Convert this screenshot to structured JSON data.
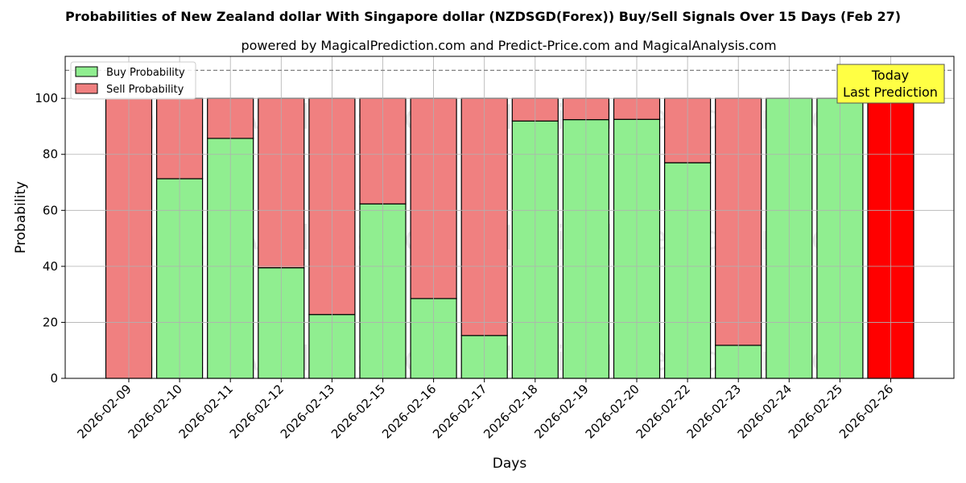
{
  "chart_data": {
    "type": "bar",
    "stacked": true,
    "title": "Probabilities of New Zealand dollar With Singapore dollar (NZDSGD(Forex)) Buy/Sell Signals Over 15 Days (Feb 27)",
    "subtitle": "powered by MagicalPrediction.com and Predict-Price.com and MagicalAnalysis.com",
    "xlabel": "Days",
    "ylabel": "Probability",
    "ylim": [
      0,
      115
    ],
    "yticks": [
      0,
      20,
      40,
      60,
      80,
      100
    ],
    "reference_line": 110,
    "grid": true,
    "legend_position": "top-left",
    "categories": [
      "2026-02-09",
      "2026-02-10",
      "2026-02-11",
      "2026-02-12",
      "2026-02-13",
      "2026-02-15",
      "2026-02-16",
      "2026-02-17",
      "2026-02-18",
      "2026-02-19",
      "2026-02-20",
      "2026-02-22",
      "2026-02-23",
      "2026-02-24",
      "2026-02-25",
      "2026-02-26"
    ],
    "series": [
      {
        "name": "Buy Probability",
        "color": "#90ee90",
        "values": [
          0,
          71.3,
          85.7,
          39.5,
          22.8,
          62.3,
          28.5,
          15.3,
          91.9,
          92.4,
          92.5,
          77.0,
          11.8,
          100,
          100,
          0
        ]
      },
      {
        "name": "Sell Probability",
        "color": "#f08080",
        "values": [
          100,
          28.7,
          14.3,
          60.5,
          77.2,
          37.7,
          71.5,
          84.7,
          8.1,
          7.6,
          7.5,
          23.0,
          88.2,
          0,
          0,
          100
        ]
      }
    ],
    "highlight": {
      "index": 15,
      "color": "#ff0000"
    },
    "annotation": {
      "line1": "Today",
      "line2": "Last Prediction",
      "color": "#ffff44"
    },
    "watermarks": [
      "MagicalAnalysis.com",
      "MagicalPrediction.com"
    ]
  }
}
